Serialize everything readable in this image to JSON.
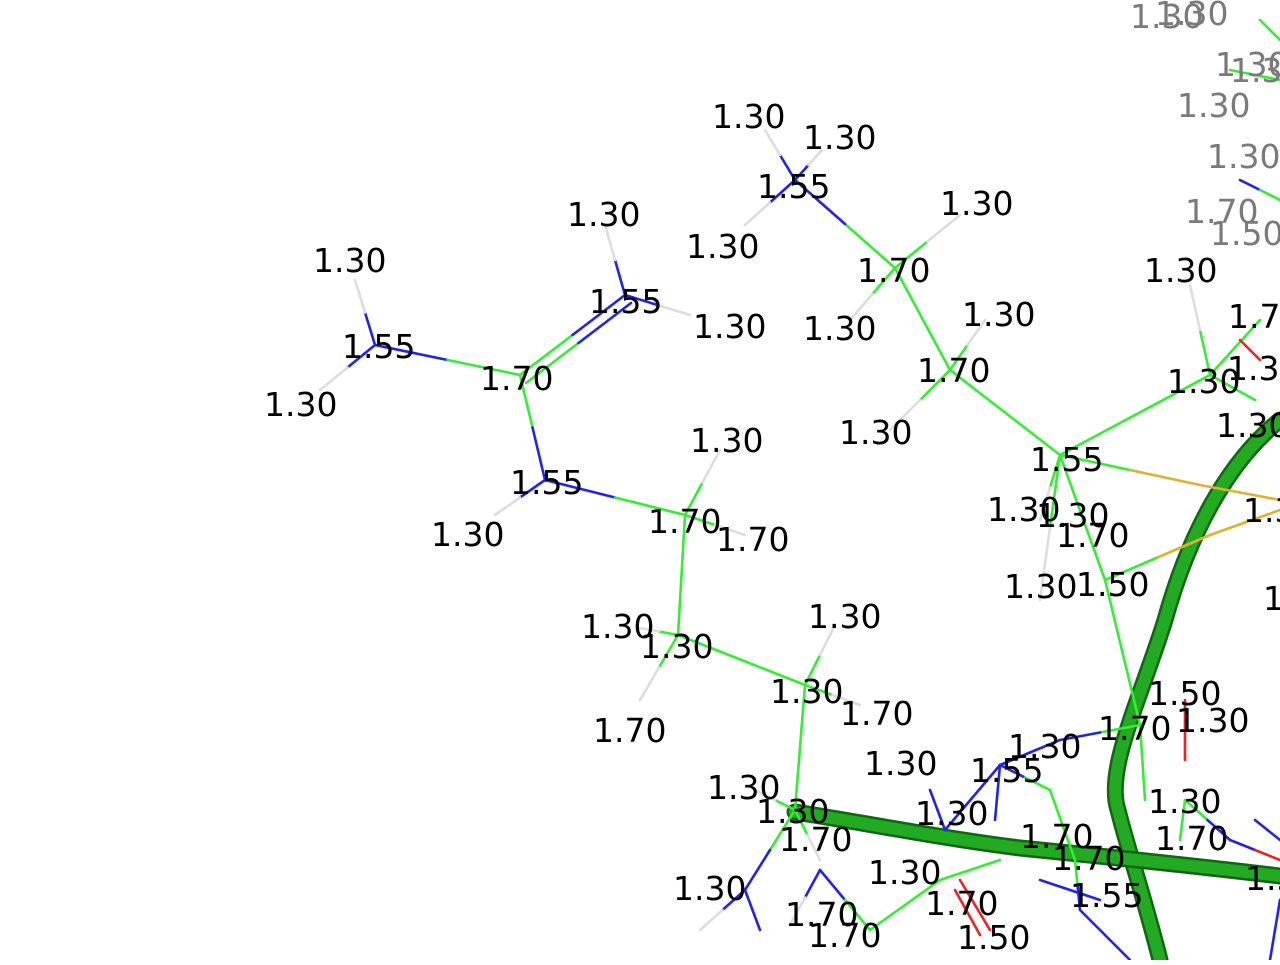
{
  "colors": {
    "carbon": "#33ee33",
    "nitrogen": "#2222ee",
    "oxygen": "#ee2222",
    "hydrogen": "#dddddd",
    "sulfur": "#e0b030",
    "ribbon": "#22aa22",
    "ribbon_edge": "#116611",
    "label": "#000000",
    "label_far": "#7a7a7a"
  },
  "labels": [
    {
      "text": "1.30"
    },
    {
      "text": "1.30"
    },
    {
      "text": "1.55"
    },
    {
      "text": "1.30"
    },
    {
      "text": "1.30"
    },
    {
      "text": "1.70"
    },
    {
      "text": "1.30"
    },
    {
      "text": "1.30"
    },
    {
      "text": "1.70"
    },
    {
      "text": "1.30"
    },
    {
      "text": "1.30"
    },
    {
      "text": "1.55"
    },
    {
      "text": "1.30"
    },
    {
      "text": "1.55"
    },
    {
      "text": "1.70"
    },
    {
      "text": "1.30"
    },
    {
      "text": "1.55"
    },
    {
      "text": "1.30"
    },
    {
      "text": "1.30"
    },
    {
      "text": "1.70"
    },
    {
      "text": "1.30"
    },
    {
      "text": "1.70"
    },
    {
      "text": "1.30"
    },
    {
      "text": "1.30"
    },
    {
      "text": "1.70"
    },
    {
      "text": "1.30"
    },
    {
      "text": "1.30"
    },
    {
      "text": "1.70"
    },
    {
      "text": "1.30"
    },
    {
      "text": "1.30"
    },
    {
      "text": "1.70"
    },
    {
      "text": "1.30"
    },
    {
      "text": "1.30"
    },
    {
      "text": "1.30"
    },
    {
      "text": "1.70"
    },
    {
      "text": "1.30"
    },
    {
      "text": "1.50"
    },
    {
      "text": "1.30"
    },
    {
      "text": "1.70"
    },
    {
      "text": "1.30"
    },
    {
      "text": "1.55"
    },
    {
      "text": "1.30"
    },
    {
      "text": "1.70"
    },
    {
      "text": "1.70"
    },
    {
      "text": "1.70"
    },
    {
      "text": "1.55"
    },
    {
      "text": "1.30"
    },
    {
      "text": "1.30"
    },
    {
      "text": "1.70"
    },
    {
      "text": "1.30"
    },
    {
      "text": "1.55"
    },
    {
      "text": "1.30"
    },
    {
      "text": "1.30"
    },
    {
      "text": "1.70"
    },
    {
      "text": "1.30"
    },
    {
      "text": "1.50"
    },
    {
      "text": "1.30"
    },
    {
      "text": "1.30"
    },
    {
      "text": "1.30"
    },
    {
      "text": "1.30"
    },
    {
      "text": "1.30"
    },
    {
      "text": "1.70"
    },
    {
      "text": "1.50"
    },
    {
      "text": "1.30"
    },
    {
      "text": "1.30"
    },
    {
      "text": "1.30"
    },
    {
      "text": "1.30"
    },
    {
      "text": "1.50"
    },
    {
      "text": "1.70"
    },
    {
      "text": "1.70"
    },
    {
      "text": "1.55"
    }
  ]
}
